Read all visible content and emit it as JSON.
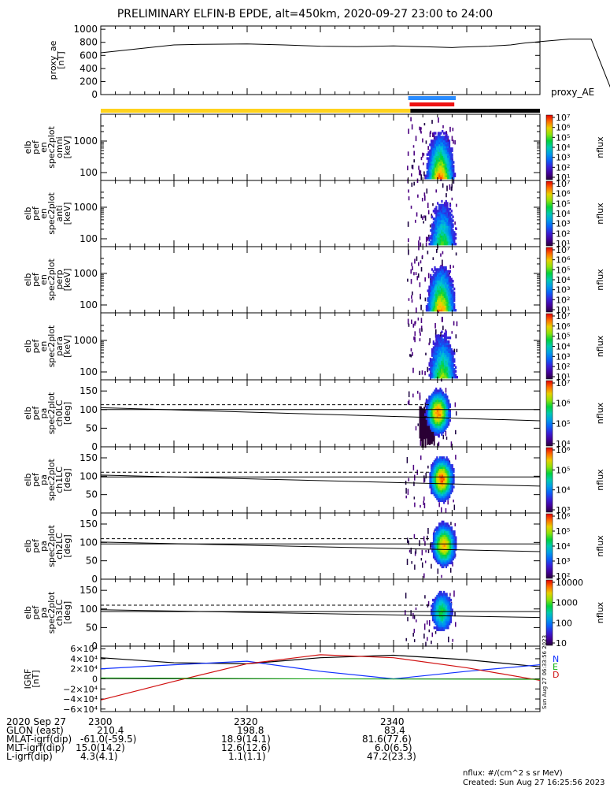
{
  "title": "PRELIMINARY ELFIN-B EPDE, alt=450km, 2020-09-27 23:00 to 24:00",
  "chart_data": [
    {
      "type": "line",
      "name": "proxy_ae",
      "ylabel": [
        "proxy_ae",
        "[nT]"
      ],
      "legend": "proxy_AE",
      "ylim": [
        0,
        1050
      ],
      "yticks": [
        "0",
        "200",
        "400",
        "600",
        "800",
        "1000"
      ],
      "x_minutes": [
        0,
        5,
        10,
        14,
        20,
        25,
        30,
        35,
        40,
        45,
        48,
        49,
        53,
        56,
        58,
        61,
        64,
        67,
        70
      ],
      "values": [
        640,
        700,
        760,
        770,
        775,
        760,
        740,
        735,
        745,
        730,
        720,
        725,
        740,
        760,
        790,
        820,
        850,
        850,
        0
      ]
    },
    {
      "type": "heatmap",
      "name": "spec2plot_omni",
      "ylabel": [
        "elb",
        "pef",
        "en",
        "spec2plot",
        "omni",
        "[keV]"
      ],
      "yscale": "log",
      "yticks": [
        "100",
        "1000"
      ],
      "zlabel": "nflux",
      "zticks": [
        "10¹",
        "10²",
        "10³",
        "10⁴",
        "10⁵",
        "10⁶",
        "10⁷"
      ]
    },
    {
      "type": "heatmap",
      "name": "spec2plot_anti",
      "ylabel": [
        "elb",
        "pef",
        "en",
        "spec2plot",
        "anti",
        "[keV]"
      ],
      "yscale": "log",
      "yticks": [
        "100",
        "1000"
      ],
      "zlabel": "nflux",
      "zticks": [
        "10¹",
        "10²",
        "10³",
        "10⁴",
        "10⁵",
        "10⁶",
        "10⁷"
      ]
    },
    {
      "type": "heatmap",
      "name": "spec2plot_perp",
      "ylabel": [
        "elb",
        "pef",
        "en",
        "spec2plot",
        "perp",
        "[keV]"
      ],
      "yscale": "log",
      "yticks": [
        "100",
        "1000"
      ],
      "zlabel": "nflux",
      "zticks": [
        "10¹",
        "10²",
        "10³",
        "10⁴",
        "10⁵",
        "10⁶",
        "10⁷"
      ]
    },
    {
      "type": "heatmap",
      "name": "spec2plot_para",
      "ylabel": [
        "elb",
        "pef",
        "en",
        "spec2plot",
        "para",
        "[keV]"
      ],
      "yscale": "log",
      "yticks": [
        "100",
        "1000"
      ],
      "zlabel": "nflux",
      "zticks": [
        "10¹",
        "10²",
        "10³",
        "10⁴",
        "10⁵",
        "10⁶",
        "10⁷"
      ]
    },
    {
      "type": "heatmap",
      "name": "spec2plot_ch0LC",
      "ylabel": [
        "elb",
        "pef",
        "pa",
        "spec2plot",
        "ch0LC",
        "[deg]"
      ],
      "ylim": [
        0,
        180
      ],
      "yticks": [
        "0",
        "50",
        "100",
        "150"
      ],
      "zlabel": "nflux",
      "zticks": [
        "10⁴",
        "10⁵",
        "10⁶",
        "10⁷"
      ]
    },
    {
      "type": "heatmap",
      "name": "spec2plot_ch1LC",
      "ylabel": [
        "elb",
        "pef",
        "pa",
        "spec2plot",
        "ch1LC",
        "[deg]"
      ],
      "ylim": [
        0,
        180
      ],
      "yticks": [
        "0",
        "50",
        "100",
        "150"
      ],
      "zlabel": "nflux",
      "zticks": [
        "10³",
        "10⁴",
        "10⁵",
        "10⁶"
      ]
    },
    {
      "type": "heatmap",
      "name": "spec2plot_ch2LC",
      "ylabel": [
        "elb",
        "pef",
        "pa",
        "spec2plot",
        "ch2LC",
        "[deg]"
      ],
      "ylim": [
        0,
        180
      ],
      "yticks": [
        "0",
        "50",
        "100",
        "150"
      ],
      "zlabel": "nflux",
      "zticks": [
        "10²",
        "10³",
        "10⁴",
        "10⁵",
        "10⁶"
      ]
    },
    {
      "type": "heatmap",
      "name": "spec2plot_ch3LC",
      "ylabel": [
        "elb",
        "pef",
        "pa",
        "spec2plot",
        "ch3LC",
        "[deg]"
      ],
      "ylim": [
        0,
        180
      ],
      "yticks": [
        "0",
        "50",
        "100",
        "150"
      ],
      "zlabel": "nflux",
      "zticks": [
        "10",
        "100",
        "1000",
        "10000"
      ]
    },
    {
      "type": "line",
      "name": "IGRF",
      "ylabel": [
        "IGRF",
        "[nT]"
      ],
      "ylim": [
        -65000,
        65000
      ],
      "yticks": [
        "−6×10⁴",
        "−4×10⁴",
        "−2×10⁴",
        "0",
        "2×10⁴",
        "4×10⁴",
        "6×10⁴"
      ],
      "legend": [
        "N",
        "E",
        "D"
      ],
      "series": [
        {
          "name": "N",
          "x_minutes": [
            0,
            10,
            20,
            30,
            40,
            50,
            60
          ],
          "values": [
            42000,
            32000,
            30000,
            42000,
            47000,
            38000,
            24000
          ]
        },
        {
          "name": "E",
          "x_minutes": [
            0,
            10,
            20,
            30,
            40,
            50,
            60
          ],
          "values": [
            20000,
            28000,
            35000,
            15000,
            0,
            15000,
            28000
          ]
        },
        {
          "name": "D",
          "x_minutes": [
            0,
            10,
            20,
            30,
            40,
            50,
            60
          ],
          "values": [
            -42000,
            -5000,
            30000,
            48000,
            42000,
            22000,
            -3000
          ]
        }
      ]
    }
  ],
  "footer": {
    "labels": [
      "2020 Sep 27",
      "GLON (east)",
      "MLAT-igrf(dip)",
      "MLT-igrf(dip)",
      "L-igrf(dip)"
    ],
    "time_ticks": [
      "2300",
      "2320",
      "2340"
    ],
    "columns": [
      [
        "210.4",
        "-61.0(-59.5)",
        "15.0(14.2)",
        "4.3(4.1)"
      ],
      [
        "198.8",
        "18.9(14.1)",
        "12.6(12.6)",
        "1.1(1.1)"
      ],
      [
        "83.4",
        "81.6(77.6)",
        "6.0(6.5)",
        "47.2(23.3)"
      ]
    ],
    "units": "nflux: #/(cm^2 s sr MeV)",
    "created": "Created: Sun Aug 27 16:25:56 2023",
    "side_stamp": "Sun Aug 27 06:33:56 2023"
  }
}
